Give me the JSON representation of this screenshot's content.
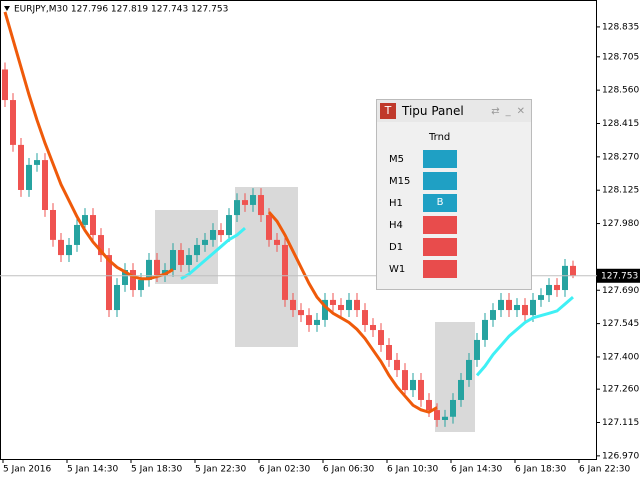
{
  "chart_data": {
    "type": "candlestick",
    "title": "EURJPY,M30  127.796 127.819 127.743 127.753",
    "up_color": "#26a3a0",
    "down_color": "#ef5350",
    "last_price": 127.753,
    "ylim": [
      126.952,
      128.952
    ],
    "yticks": [
      128.835,
      128.705,
      {
        "value": 128.56,
        "label": "128.560"
      },
      128.415,
      {
        "value": 128.27,
        "label": "128.270"
      },
      128.125,
      {
        "value": 127.98,
        "label": "127.980"
      },
      {
        "value": 127.69,
        "label": "127.690"
      },
      127.545,
      {
        "value": 127.4,
        "label": "127.400"
      },
      {
        "value": 127.26,
        "label": "127.260"
      },
      127.115,
      {
        "value": 126.97,
        "label": "126.970"
      }
    ],
    "xticks": [
      {
        "value": 0,
        "label": "5 Jan 2016"
      },
      {
        "value": 8,
        "label": "5 Jan 14:30"
      },
      {
        "value": 16,
        "label": "5 Jan 18:30"
      },
      {
        "value": 24,
        "label": "5 Jan 22:30"
      },
      {
        "value": 32,
        "label": "6 Jan 02:30"
      },
      {
        "value": 40,
        "label": "6 Jan 06:30"
      },
      {
        "value": 48,
        "label": "6 Jan 10:30"
      },
      {
        "value": 56,
        "label": "6 Jan 14:30"
      },
      {
        "value": 64,
        "label": "6 Jan 18:30"
      },
      {
        "value": 72,
        "label": "6 Jan 22:30"
      }
    ],
    "open": [
      128.65,
      128.517,
      128.322,
      128.126,
      128.235,
      128.256,
      128.039,
      127.909,
      127.843,
      127.887,
      127.974,
      128.017,
      127.93,
      127.843,
      127.604,
      127.713,
      127.778,
      127.691,
      127.735,
      127.822,
      127.756,
      127.778,
      127.865,
      127.8,
      127.843,
      127.887,
      127.909,
      127.952,
      127.93,
      128.017,
      128.082,
      128.061,
      128.104,
      128.017,
      127.909,
      127.887,
      127.648,
      127.604,
      127.582,
      127.539,
      127.561,
      127.648,
      127.626,
      127.604,
      127.648,
      127.604,
      127.539,
      127.517,
      127.452,
      127.387,
      127.343,
      127.256,
      127.3,
      127.213,
      127.169,
      127.126,
      127.14,
      127.213,
      127.3,
      127.387,
      127.474,
      127.561,
      127.604,
      127.648,
      127.604,
      127.626,
      127.582,
      127.648,
      127.669,
      127.713,
      127.691,
      127.796
    ],
    "high": [
      128.68,
      128.547,
      128.352,
      128.265,
      128.286,
      128.286,
      128.069,
      127.939,
      127.917,
      128.004,
      128.047,
      128.047,
      127.96,
      127.873,
      127.743,
      127.808,
      127.808,
      127.765,
      127.852,
      127.852,
      127.808,
      127.895,
      127.895,
      127.873,
      127.917,
      127.939,
      127.982,
      127.982,
      128.047,
      128.112,
      128.112,
      128.134,
      128.134,
      128.047,
      127.939,
      127.917,
      127.678,
      127.634,
      127.612,
      127.591,
      127.678,
      127.678,
      127.656,
      127.678,
      127.678,
      127.634,
      127.569,
      127.547,
      127.482,
      127.417,
      127.373,
      127.33,
      127.33,
      127.243,
      127.199,
      127.17,
      127.243,
      127.33,
      127.417,
      127.504,
      127.591,
      127.634,
      127.678,
      127.678,
      127.656,
      127.656,
      127.678,
      127.699,
      127.743,
      127.743,
      127.826,
      127.819
    ],
    "low": [
      128.487,
      128.292,
      128.096,
      128.096,
      128.205,
      128.009,
      127.879,
      127.813,
      127.813,
      127.857,
      127.944,
      127.9,
      127.813,
      127.574,
      127.574,
      127.683,
      127.661,
      127.661,
      127.705,
      127.726,
      127.726,
      127.748,
      127.77,
      127.77,
      127.813,
      127.857,
      127.879,
      127.9,
      127.9,
      127.987,
      128.031,
      128.031,
      127.987,
      127.879,
      127.857,
      127.618,
      127.574,
      127.552,
      127.509,
      127.509,
      127.531,
      127.596,
      127.574,
      127.574,
      127.574,
      127.509,
      127.487,
      127.422,
      127.357,
      127.313,
      127.226,
      127.226,
      127.183,
      127.139,
      127.096,
      127.096,
      127.11,
      127.183,
      127.27,
      127.357,
      127.444,
      127.531,
      127.574,
      127.574,
      127.574,
      127.552,
      127.552,
      127.618,
      127.639,
      127.661,
      127.661,
      127.743
    ],
    "close": [
      128.517,
      128.322,
      128.126,
      128.235,
      128.256,
      128.039,
      127.909,
      127.843,
      127.887,
      127.974,
      128.017,
      127.93,
      127.843,
      127.604,
      127.713,
      127.778,
      127.691,
      127.735,
      127.822,
      127.756,
      127.778,
      127.865,
      127.8,
      127.843,
      127.887,
      127.909,
      127.952,
      127.93,
      128.017,
      128.082,
      128.061,
      128.104,
      128.017,
      127.909,
      127.887,
      127.648,
      127.604,
      127.582,
      127.539,
      127.561,
      127.648,
      127.626,
      127.604,
      127.648,
      127.604,
      127.539,
      127.517,
      127.452,
      127.387,
      127.343,
      127.256,
      127.3,
      127.213,
      127.169,
      127.126,
      127.14,
      127.213,
      127.3,
      127.387,
      127.474,
      127.561,
      127.604,
      127.648,
      127.604,
      127.626,
      127.582,
      127.648,
      127.669,
      127.713,
      127.691,
      127.796,
      127.753
    ],
    "lines": [
      {
        "color": "#ef5a0a",
        "values": [
          128.9,
          128.78,
          128.66,
          128.54,
          128.43,
          128.33,
          128.24,
          128.15,
          128.08,
          128.01,
          127.95,
          127.9,
          127.86,
          127.82,
          127.79,
          127.77,
          127.75,
          127.74,
          127.74,
          127.75,
          127.76,
          127.78,
          null,
          null,
          null,
          null,
          null,
          null,
          null,
          null,
          null,
          null,
          null,
          128.03,
          127.99,
          127.93,
          127.86,
          127.79,
          127.72,
          127.66,
          127.62,
          127.59,
          127.57,
          127.55,
          127.52,
          127.48,
          127.43,
          127.38,
          127.32,
          127.27,
          127.23,
          127.19,
          127.17,
          127.16,
          127.18,
          null,
          null,
          null,
          null,
          null,
          null,
          null,
          null,
          null,
          null,
          null,
          null,
          null,
          null,
          null,
          null,
          null
        ]
      },
      {
        "color": "#3ff0f5",
        "values": [
          null,
          null,
          null,
          null,
          null,
          null,
          null,
          null,
          null,
          null,
          null,
          null,
          null,
          null,
          null,
          null,
          null,
          null,
          null,
          null,
          null,
          null,
          127.74,
          127.76,
          127.79,
          127.82,
          127.85,
          127.88,
          127.91,
          127.93,
          127.96,
          null,
          null,
          null,
          null,
          null,
          null,
          null,
          null,
          null,
          null,
          null,
          null,
          null,
          null,
          null,
          null,
          null,
          null,
          null,
          null,
          null,
          null,
          null,
          null,
          null,
          null,
          null,
          null,
          127.32,
          127.36,
          127.41,
          127.45,
          127.49,
          127.52,
          127.55,
          127.57,
          127.58,
          127.59,
          127.6,
          127.63,
          127.66
        ]
      }
    ]
  },
  "panel": {
    "title": "Tipu Panel",
    "header": "Trnd",
    "rows": [
      {
        "label": "M5",
        "color": "#1fa0c4"
      },
      {
        "label": "M15",
        "color": "#1fa0c4"
      },
      {
        "label": "H1",
        "color": "#1fa0c4",
        "text": "B"
      },
      {
        "label": "H4",
        "color": "#e84c4c"
      },
      {
        "label": "D1",
        "color": "#e84c4c"
      },
      {
        "label": "W1",
        "color": "#e84c4c"
      }
    ]
  }
}
